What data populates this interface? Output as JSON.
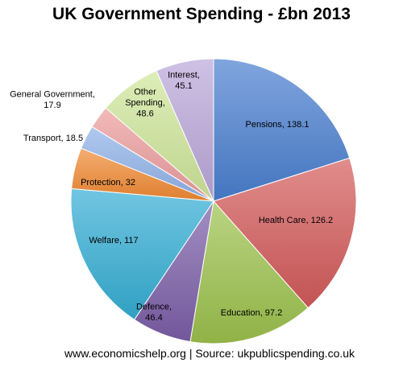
{
  "chart_data": {
    "type": "pie",
    "title": "UK Government Spending - £bn 2013",
    "slices": [
      {
        "label": "Pensions, 138.1",
        "name": "Pensions",
        "value": 138.1,
        "color": "#4a7fd0",
        "label_color": "#000000"
      },
      {
        "label": "Health Care, 126.2",
        "name": "Health Care",
        "value": 126.2,
        "color": "#d45a5a",
        "label_color": "#000000"
      },
      {
        "label": "Education, 97.2",
        "name": "Education",
        "value": 97.2,
        "color": "#9dc24c",
        "label_color": "#000000"
      },
      {
        "label": "Defence,\n46.4",
        "name": "Defence",
        "value": 46.4,
        "color": "#7c5fa8",
        "label_color": "#000000"
      },
      {
        "label": "Welfare, 117",
        "name": "Welfare",
        "value": 117,
        "color": "#34aed4",
        "label_color": "#000000"
      },
      {
        "label": "Protection, 32",
        "name": "Protection",
        "value": 32,
        "color": "#f18a33",
        "label_color": "#000000"
      },
      {
        "label": "Transport, 18.5",
        "name": "Transport",
        "value": 18.5,
        "color": "#8fb2ea",
        "label_color": "#000000"
      },
      {
        "label": "General Government,\n17.9",
        "name": "General Government",
        "value": 17.9,
        "color": "#ec9c9c",
        "label_color": "#000000"
      },
      {
        "label": "Other\nSpending,\n48.6",
        "name": "Other Spending",
        "value": 48.6,
        "color": "#cfe69a",
        "label_color": "#000000"
      },
      {
        "label": "Interest,\n45.1",
        "name": "Interest",
        "value": 45.1,
        "color": "#bba7d9",
        "label_color": "#000000"
      }
    ],
    "start_angle_deg": 0,
    "direction": "clockwise",
    "legend": "none"
  },
  "footer": "www.economicshelp.org | Source:  ukpublicspending.co.uk"
}
